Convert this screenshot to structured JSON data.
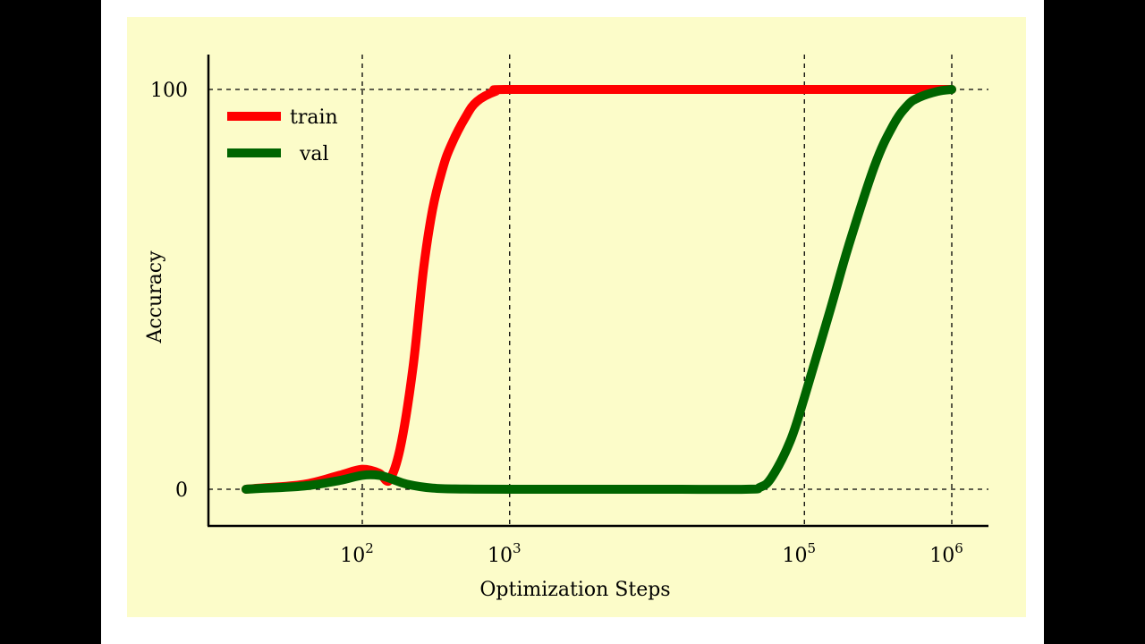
{
  "colors": {
    "panel_background": "#fcfcc9",
    "train": "#ff0000",
    "val": "#006400",
    "frame": "#ffffff",
    "outer": "#000000"
  },
  "chart_data": {
    "type": "line",
    "title": "",
    "xlabel": "Optimization Steps",
    "ylabel": "Accuracy",
    "xscale": "log",
    "xlim": [
      5,
      2000000
    ],
    "ylim": [
      -9,
      108
    ],
    "x_ticks": [
      {
        "value": 100,
        "base": "10",
        "exp": "2"
      },
      {
        "value": 1000,
        "base": "10",
        "exp": "3"
      },
      {
        "value": 100000,
        "base": "10",
        "exp": "5"
      },
      {
        "value": 1000000,
        "base": "10",
        "exp": "6"
      }
    ],
    "y_ticks": [
      {
        "value": 0,
        "label": "0"
      },
      {
        "value": 100,
        "label": "100"
      }
    ],
    "grid": "dashed at tick positions",
    "legend": {
      "placement": "top-left",
      "entries": [
        "train",
        "val"
      ]
    },
    "series": [
      {
        "name": "train",
        "x": [
          10,
          20,
          40,
          70,
          100,
          130,
          150,
          180,
          220,
          260,
          300,
          350,
          400,
          500,
          600,
          800,
          1000,
          10000,
          100000,
          1000000
        ],
        "y": [
          0,
          0.3,
          1.2,
          3.5,
          5,
          4,
          2,
          10,
          30,
          55,
          70,
          80,
          86,
          93,
          97,
          99.5,
          100,
          100,
          100,
          100
        ]
      },
      {
        "name": "val",
        "x": [
          10,
          20,
          40,
          70,
          100,
          130,
          160,
          200,
          300,
          500,
          1000,
          10000,
          40000,
          50000,
          60000,
          80000,
          100000,
          150000,
          200000,
          300000,
          400000,
          500000,
          600000,
          800000,
          1000000
        ],
        "y": [
          0,
          0.2,
          0.8,
          2.2,
          3.5,
          3.5,
          2.5,
          1.3,
          0.3,
          0.05,
          0,
          0,
          0,
          0.5,
          3,
          12,
          23,
          45,
          61,
          81,
          91,
          96,
          98,
          99.5,
          100
        ]
      }
    ]
  }
}
